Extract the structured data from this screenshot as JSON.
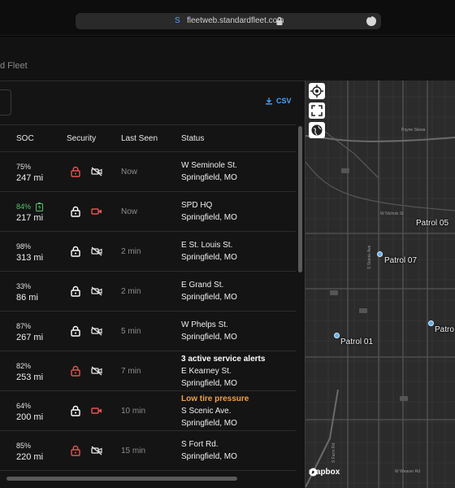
{
  "browser": {
    "url": "fleetweb.standardfleet.com"
  },
  "app": {
    "brand": "d Fleet",
    "csv_label": "CSV"
  },
  "table": {
    "headers": {
      "soc": "SOC",
      "security": "Security",
      "last_seen": "Last Seen",
      "status": "Status"
    },
    "rows": [
      {
        "soc_pct": "75%",
        "soc_mi": "247 mi",
        "lock_color": "red",
        "camera": "off",
        "last_seen": "Now",
        "status": [
          "W Seminole St.",
          "Springfield, MO"
        ]
      },
      {
        "soc_pct": "84%",
        "soc_mi": "217 mi",
        "charging": true,
        "lock_color": "white",
        "camera": "red",
        "last_seen": "Now",
        "status": [
          "SPD HQ",
          "Springfield, MO"
        ]
      },
      {
        "soc_pct": "98%",
        "soc_mi": "313 mi",
        "lock_color": "white",
        "camera": "off",
        "last_seen": "2 min",
        "status": [
          "E St. Louis St.",
          "Springfield, MO"
        ]
      },
      {
        "soc_pct": "33%",
        "soc_mi": "86 mi",
        "lock_color": "white",
        "camera": "off",
        "last_seen": "2 min",
        "status": [
          "E Grand St.",
          "Springfield, MO"
        ]
      },
      {
        "soc_pct": "87%",
        "soc_mi": "267 mi",
        "lock_color": "white",
        "camera": "off",
        "last_seen": "5 min",
        "status": [
          "W Phelps St.",
          "Springfield, MO"
        ]
      },
      {
        "soc_pct": "82%",
        "soc_mi": "253 mi",
        "lock_color": "red",
        "camera": "off",
        "last_seen": "7 min",
        "alert": "3 active service alerts",
        "status": [
          "E Kearney St.",
          "Springfield, MO"
        ]
      },
      {
        "soc_pct": "64%",
        "soc_mi": "200 mi",
        "lock_color": "white",
        "camera": "red",
        "last_seen": "10 min",
        "warning": "Low tire pressure",
        "status": [
          "S Scenic Ave.",
          "Springfield, MO"
        ]
      },
      {
        "soc_pct": "85%",
        "soc_mi": "220 mi",
        "lock_color": "red",
        "camera": "off",
        "last_seen": "15 min",
        "status": [
          "S Fort Rd.",
          "Springfield, MO"
        ]
      }
    ]
  },
  "map": {
    "labels": {
      "patrol05": "Patrol 05",
      "patrol07": "Patrol 07",
      "patrol01": "Patrol 01",
      "patrol_partial": "Patro"
    },
    "attribution": "mapbox",
    "streets": {
      "nichols": "W Nichols St",
      "scenic": "S Scenic Ave",
      "kansas": "S Kansas Expy",
      "fort": "S Fort Ave",
      "campbell": "S Campbell Ave",
      "weaver": "W Weaver Rd",
      "farm": "S Farm Rd",
      "payne": "Payne Stewa",
      "highway": "Interstate"
    }
  },
  "colors": {
    "accent": "#4aa3ff",
    "red": "#e4554f",
    "green": "#53c26b",
    "warning": "#f0a04b",
    "marker": "#5fb1f0"
  }
}
